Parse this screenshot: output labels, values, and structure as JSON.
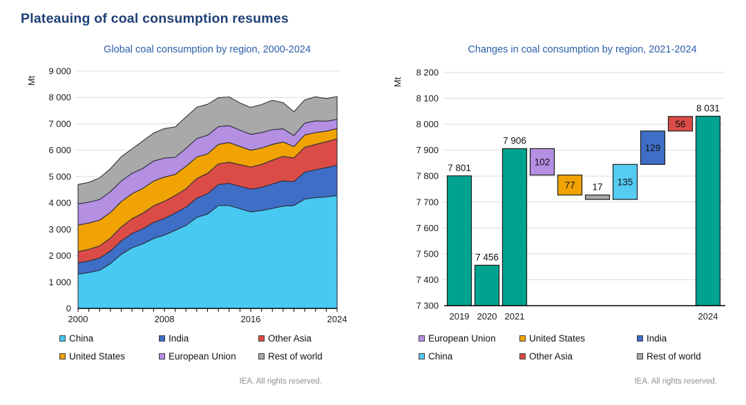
{
  "page": {
    "title": "Plateauing of coal consumption resumes"
  },
  "colors": {
    "title_navy": "#1F4077",
    "subtitle_blue": "#2A5DA8",
    "grid": "#DBDBDB",
    "axis": "#000000",
    "outline": "#2E2E3C",
    "teal": "#00A390",
    "china": "#47C9F2",
    "india": "#3E6EC6",
    "other_asia": "#DB4C46",
    "united_states": "#F0A302",
    "european_union": "#B48FE2",
    "rest_of_world": "#A9A9A9"
  },
  "chart_data": [
    {
      "type": "area",
      "stacked": true,
      "title": "Global coal consumption by region, 2000-2024",
      "ylabel": "Mt",
      "ylim": [
        0,
        9000
      ],
      "ytick_step": 1000,
      "grid": true,
      "x": [
        2000,
        2001,
        2002,
        2003,
        2004,
        2005,
        2006,
        2007,
        2008,
        2009,
        2010,
        2011,
        2012,
        2013,
        2014,
        2015,
        2016,
        2017,
        2018,
        2019,
        2020,
        2021,
        2022,
        2023,
        2024
      ],
      "xticks": [
        2000,
        2008,
        2016,
        2024
      ],
      "series": [
        {
          "name": "China",
          "color": "#47C9F2",
          "values": [
            1300,
            1360,
            1450,
            1700,
            2050,
            2300,
            2450,
            2650,
            2780,
            2960,
            3150,
            3450,
            3580,
            3900,
            3900,
            3780,
            3660,
            3710,
            3790,
            3880,
            3900,
            4145,
            4200,
            4230,
            4280
          ]
        },
        {
          "name": "India",
          "color": "#3E6EC6",
          "values": [
            430,
            440,
            460,
            480,
            510,
            540,
            570,
            610,
            630,
            660,
            690,
            730,
            770,
            800,
            840,
            850,
            860,
            880,
            930,
            960,
            905,
            1021,
            1060,
            1110,
            1150
          ]
        },
        {
          "name": "Other Asia",
          "color": "#DB4C46",
          "values": [
            420,
            440,
            460,
            490,
            530,
            560,
            590,
            630,
            650,
            660,
            700,
            750,
            770,
            780,
            800,
            820,
            840,
            870,
            900,
            930,
            900,
            944,
            960,
            980,
            1000
          ]
        },
        {
          "name": "United States",
          "color": "#F0A302",
          "values": [
            1010,
            1000,
            980,
            970,
            960,
            950,
            940,
            940,
            920,
            800,
            850,
            810,
            740,
            740,
            750,
            690,
            640,
            620,
            600,
            540,
            430,
            467,
            450,
            400,
            390
          ]
        },
        {
          "name": "European Union",
          "color": "#B48FE2",
          "values": [
            800,
            790,
            780,
            790,
            780,
            770,
            760,
            760,
            720,
            650,
            680,
            700,
            710,
            670,
            640,
            620,
            600,
            590,
            560,
            500,
            420,
            451,
            440,
            380,
            349
          ]
        },
        {
          "name": "Rest of world",
          "color": "#A9A9A9",
          "values": [
            740,
            750,
            820,
            870,
            920,
            930,
            1040,
            1060,
            1120,
            1150,
            1190,
            1190,
            1170,
            1100,
            1090,
            1030,
            1020,
            1060,
            1110,
            991,
            901,
            878,
            915,
            860,
            861
          ]
        }
      ],
      "legend": [
        {
          "label": "China",
          "color": "#47C9F2"
        },
        {
          "label": "India",
          "color": "#3E6EC6"
        },
        {
          "label": "Other Asia",
          "color": "#DB4C46"
        },
        {
          "label": "United States",
          "color": "#F0A302"
        },
        {
          "label": "European Union",
          "color": "#B48FE2"
        },
        {
          "label": "Rest of world",
          "color": "#A9A9A9"
        }
      ],
      "footer": "IEA. All rights reserved."
    },
    {
      "type": "waterfall",
      "title": "Changes in coal consumption by region, 2021-2024",
      "ylabel": "Mt",
      "ylim": [
        7300,
        8200
      ],
      "ytick_step": 100,
      "grid": true,
      "bars": [
        {
          "xlabel": "2019",
          "kind": "total",
          "value": 7801,
          "label": "7 801",
          "label_pos": "above",
          "color": "#00A390"
        },
        {
          "xlabel": "2020",
          "kind": "total",
          "value": 7456,
          "label": "7 456",
          "label_pos": "above",
          "color": "#00A390"
        },
        {
          "xlabel": "2021",
          "kind": "total",
          "value": 7906,
          "label": "7 906",
          "label_pos": "above",
          "color": "#00A390"
        },
        {
          "xlabel": "",
          "kind": "change",
          "region": "European Union",
          "value": -102,
          "start": 7906,
          "end": 7804,
          "label": "102",
          "label_pos": "inside",
          "color": "#B48FE2"
        },
        {
          "xlabel": "",
          "kind": "change",
          "region": "United States",
          "value": -77,
          "start": 7804,
          "end": 7727,
          "label": "77",
          "label_pos": "inside",
          "color": "#F0A302"
        },
        {
          "xlabel": "",
          "kind": "change",
          "region": "Rest of world",
          "value": -17,
          "start": 7727,
          "end": 7710,
          "label": "17",
          "label_pos": "above",
          "color": "#A9A9A9"
        },
        {
          "xlabel": "",
          "kind": "change",
          "region": "China",
          "value": 135,
          "start": 7710,
          "end": 7845,
          "label": "135",
          "label_pos": "inside",
          "color": "#55CBF2"
        },
        {
          "xlabel": "",
          "kind": "change",
          "region": "India",
          "value": 129,
          "start": 7845,
          "end": 7974,
          "label": "129",
          "label_pos": "inside",
          "color": "#3E6EC6"
        },
        {
          "xlabel": "",
          "kind": "change",
          "region": "Other Asia",
          "value": 56,
          "start": 7974,
          "end": 8030,
          "label": "56",
          "label_pos": "inside",
          "color": "#DB4C46"
        },
        {
          "xlabel": "2024",
          "kind": "total",
          "value": 8031,
          "label": "8 031",
          "label_pos": "above",
          "color": "#00A390"
        }
      ],
      "legend": [
        {
          "label": "European Union",
          "color": "#B48FE2"
        },
        {
          "label": "United States",
          "color": "#F0A302"
        },
        {
          "label": "India",
          "color": "#3E6EC6"
        },
        {
          "label": "China",
          "color": "#55CBF2"
        },
        {
          "label": "Other Asia",
          "color": "#DB4C46"
        },
        {
          "label": "Rest of world",
          "color": "#A9A9A9"
        }
      ],
      "footer": "IEA. All rights reserved."
    }
  ]
}
